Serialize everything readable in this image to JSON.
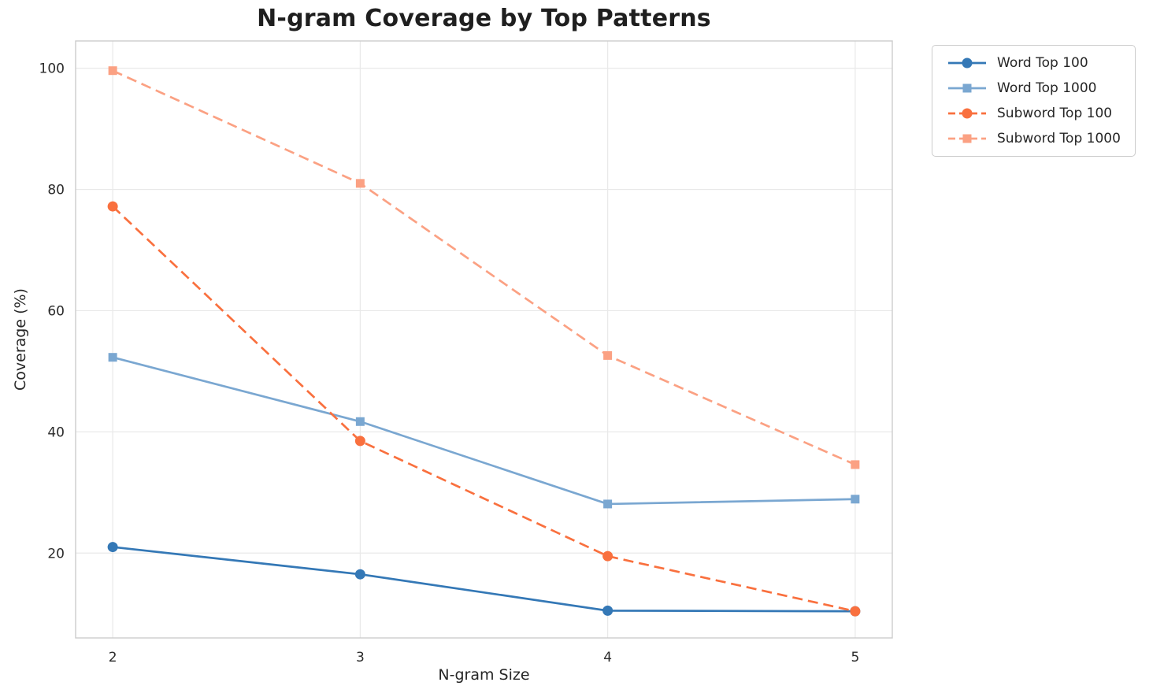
{
  "chart_data": {
    "type": "line",
    "title": "N-gram Coverage by Top Patterns",
    "xlabel": "N-gram Size",
    "ylabel": "Coverage (%)",
    "x": [
      2,
      3,
      4,
      5
    ],
    "xticks": [
      "2",
      "3",
      "4",
      "5"
    ],
    "yticks": [
      20,
      40,
      60,
      80,
      100
    ],
    "xlim": [
      1.85,
      5.15
    ],
    "ylim": [
      6,
      104.5
    ],
    "grid": true,
    "legend_position": "outside-top-right",
    "series": [
      {
        "name": "Word Top 100",
        "values": [
          21.0,
          16.5,
          10.5,
          10.4
        ],
        "color": "#3478b6",
        "line_style": "solid",
        "marker": "circle"
      },
      {
        "name": "Word Top 1000",
        "values": [
          52.3,
          41.7,
          28.1,
          28.9
        ],
        "color": "#7aa7d1",
        "line_style": "solid",
        "marker": "square"
      },
      {
        "name": "Subword Top 100",
        "values": [
          77.2,
          38.5,
          19.5,
          10.4
        ],
        "color": "#f9703e",
        "line_style": "dashed",
        "marker": "circle"
      },
      {
        "name": "Subword Top 1000",
        "values": [
          99.6,
          81.0,
          52.6,
          34.6
        ],
        "color": "#fba183",
        "line_style": "dashed",
        "marker": "square"
      }
    ],
    "colors": {
      "grid": "#e9e9e9",
      "frame": "#cccccc",
      "tick_text": "#2b2b2b"
    }
  }
}
